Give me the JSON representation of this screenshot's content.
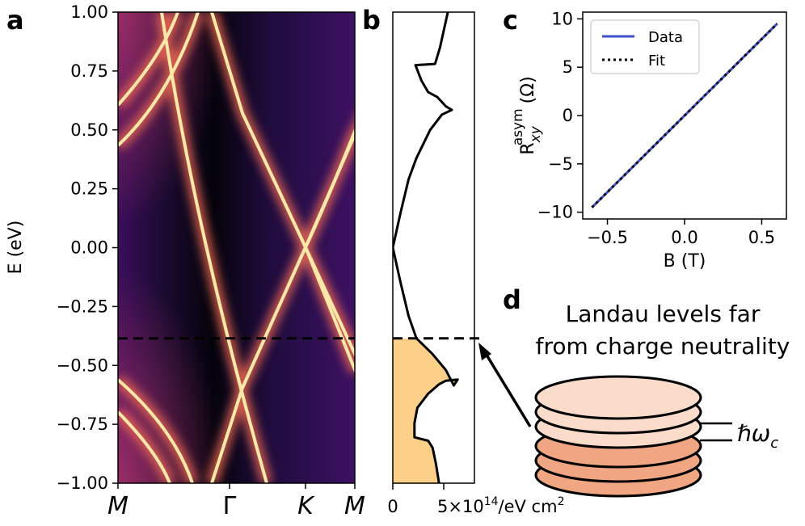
{
  "panels": {
    "a": {
      "label": "a"
    },
    "b": {
      "label": "b"
    },
    "c": {
      "label": "c"
    },
    "d": {
      "label": "d"
    }
  },
  "chart_data": [
    {
      "type": "heatmap",
      "panel": "a",
      "ylabel": "E (eV)",
      "ylim": [
        -1.0,
        1.0
      ],
      "yticks": [
        1.0,
        0.75,
        0.5,
        0.25,
        0.0,
        -0.25,
        -0.5,
        -0.75,
        -1.0
      ],
      "ytick_labels": [
        "1.00",
        "0.75",
        "0.50",
        "0.25",
        "0.00",
        "−0.25",
        "−0.50",
        "−0.75",
        "−1.00"
      ],
      "xtick_labels": [
        "M",
        "Γ",
        "K",
        "M"
      ],
      "dashed_line_E": -0.385,
      "colormap": "magma"
    },
    {
      "type": "line",
      "panel": "b",
      "xlabel_left": "0",
      "xlabel_right": "5×10",
      "xlabel_exp": "14",
      "xlabel_unit": "/eV cm",
      "xlabel_unit_exp": "2",
      "ylim": [
        -1.0,
        1.0
      ],
      "xlim": [
        0,
        8.3
      ],
      "dos_points": [
        [
          4.7,
          -1.0
        ],
        [
          4.4,
          -0.92
        ],
        [
          4.05,
          -0.85
        ],
        [
          3.6,
          -0.82
        ],
        [
          2.2,
          -0.805
        ],
        [
          2.2,
          -0.745
        ],
        [
          2.5,
          -0.68
        ],
        [
          3.6,
          -0.62
        ],
        [
          4.7,
          -0.58
        ],
        [
          5.4,
          -0.565
        ],
        [
          6.6,
          -0.56
        ],
        [
          6.2,
          -0.585
        ],
        [
          5.4,
          -0.52
        ],
        [
          4.0,
          -0.45
        ],
        [
          2.4,
          -0.385
        ],
        [
          1.6,
          -0.29
        ],
        [
          0.8,
          -0.15
        ],
        [
          0.0,
          0.0
        ],
        [
          0.8,
          0.15
        ],
        [
          1.6,
          0.29
        ],
        [
          2.4,
          0.38
        ],
        [
          3.8,
          0.5
        ],
        [
          5.0,
          0.565
        ],
        [
          6.0,
          0.585
        ],
        [
          5.4,
          0.6
        ],
        [
          4.5,
          0.64
        ],
        [
          3.6,
          0.66
        ],
        [
          2.9,
          0.71
        ],
        [
          2.3,
          0.775
        ],
        [
          4.3,
          0.78
        ],
        [
          4.8,
          0.85
        ],
        [
          5.6,
          1.0
        ]
      ],
      "fill_below_E": -0.385,
      "fill_color": "#FCD088",
      "dashed_line_E": -0.385
    },
    {
      "type": "line",
      "panel": "c",
      "xlabel": "B (T)",
      "ylabel": "R",
      "ylabel_sub": "xy",
      "ylabel_sup": "asym",
      "ylabel_unit": "(Ω)",
      "xlim": [
        -0.66,
        0.66
      ],
      "ylim": [
        -10.7,
        10.7
      ],
      "xticks": [
        -0.5,
        0.0,
        0.5
      ],
      "xtick_labels": [
        "−0.5",
        "0.0",
        "0.5"
      ],
      "yticks": [
        10,
        5,
        0,
        -5,
        -10
      ],
      "ytick_labels": [
        "10",
        "5",
        "0",
        "−5",
        "−10"
      ],
      "legend_position": "top-left",
      "series": [
        {
          "name": "Data",
          "x": [
            -0.6,
            0.6
          ],
          "y": [
            -9.5,
            9.5
          ],
          "color": "#3F4FC8",
          "style": "solid"
        },
        {
          "name": "Fit",
          "x": [
            -0.6,
            0.6
          ],
          "y": [
            -9.5,
            9.5
          ],
          "color": "#000000",
          "style": "dotted"
        }
      ]
    }
  ],
  "panel_d": {
    "title_line1": "Landau levels far",
    "title_line2": "from charge neutrality",
    "spacing_label": "ℏω",
    "spacing_sub": "c",
    "disk_colors": [
      "#F0A682",
      "#F0A682",
      "#F0A682",
      "#FBDCCB",
      "#FBDCCB",
      "#FBDCCB"
    ]
  }
}
